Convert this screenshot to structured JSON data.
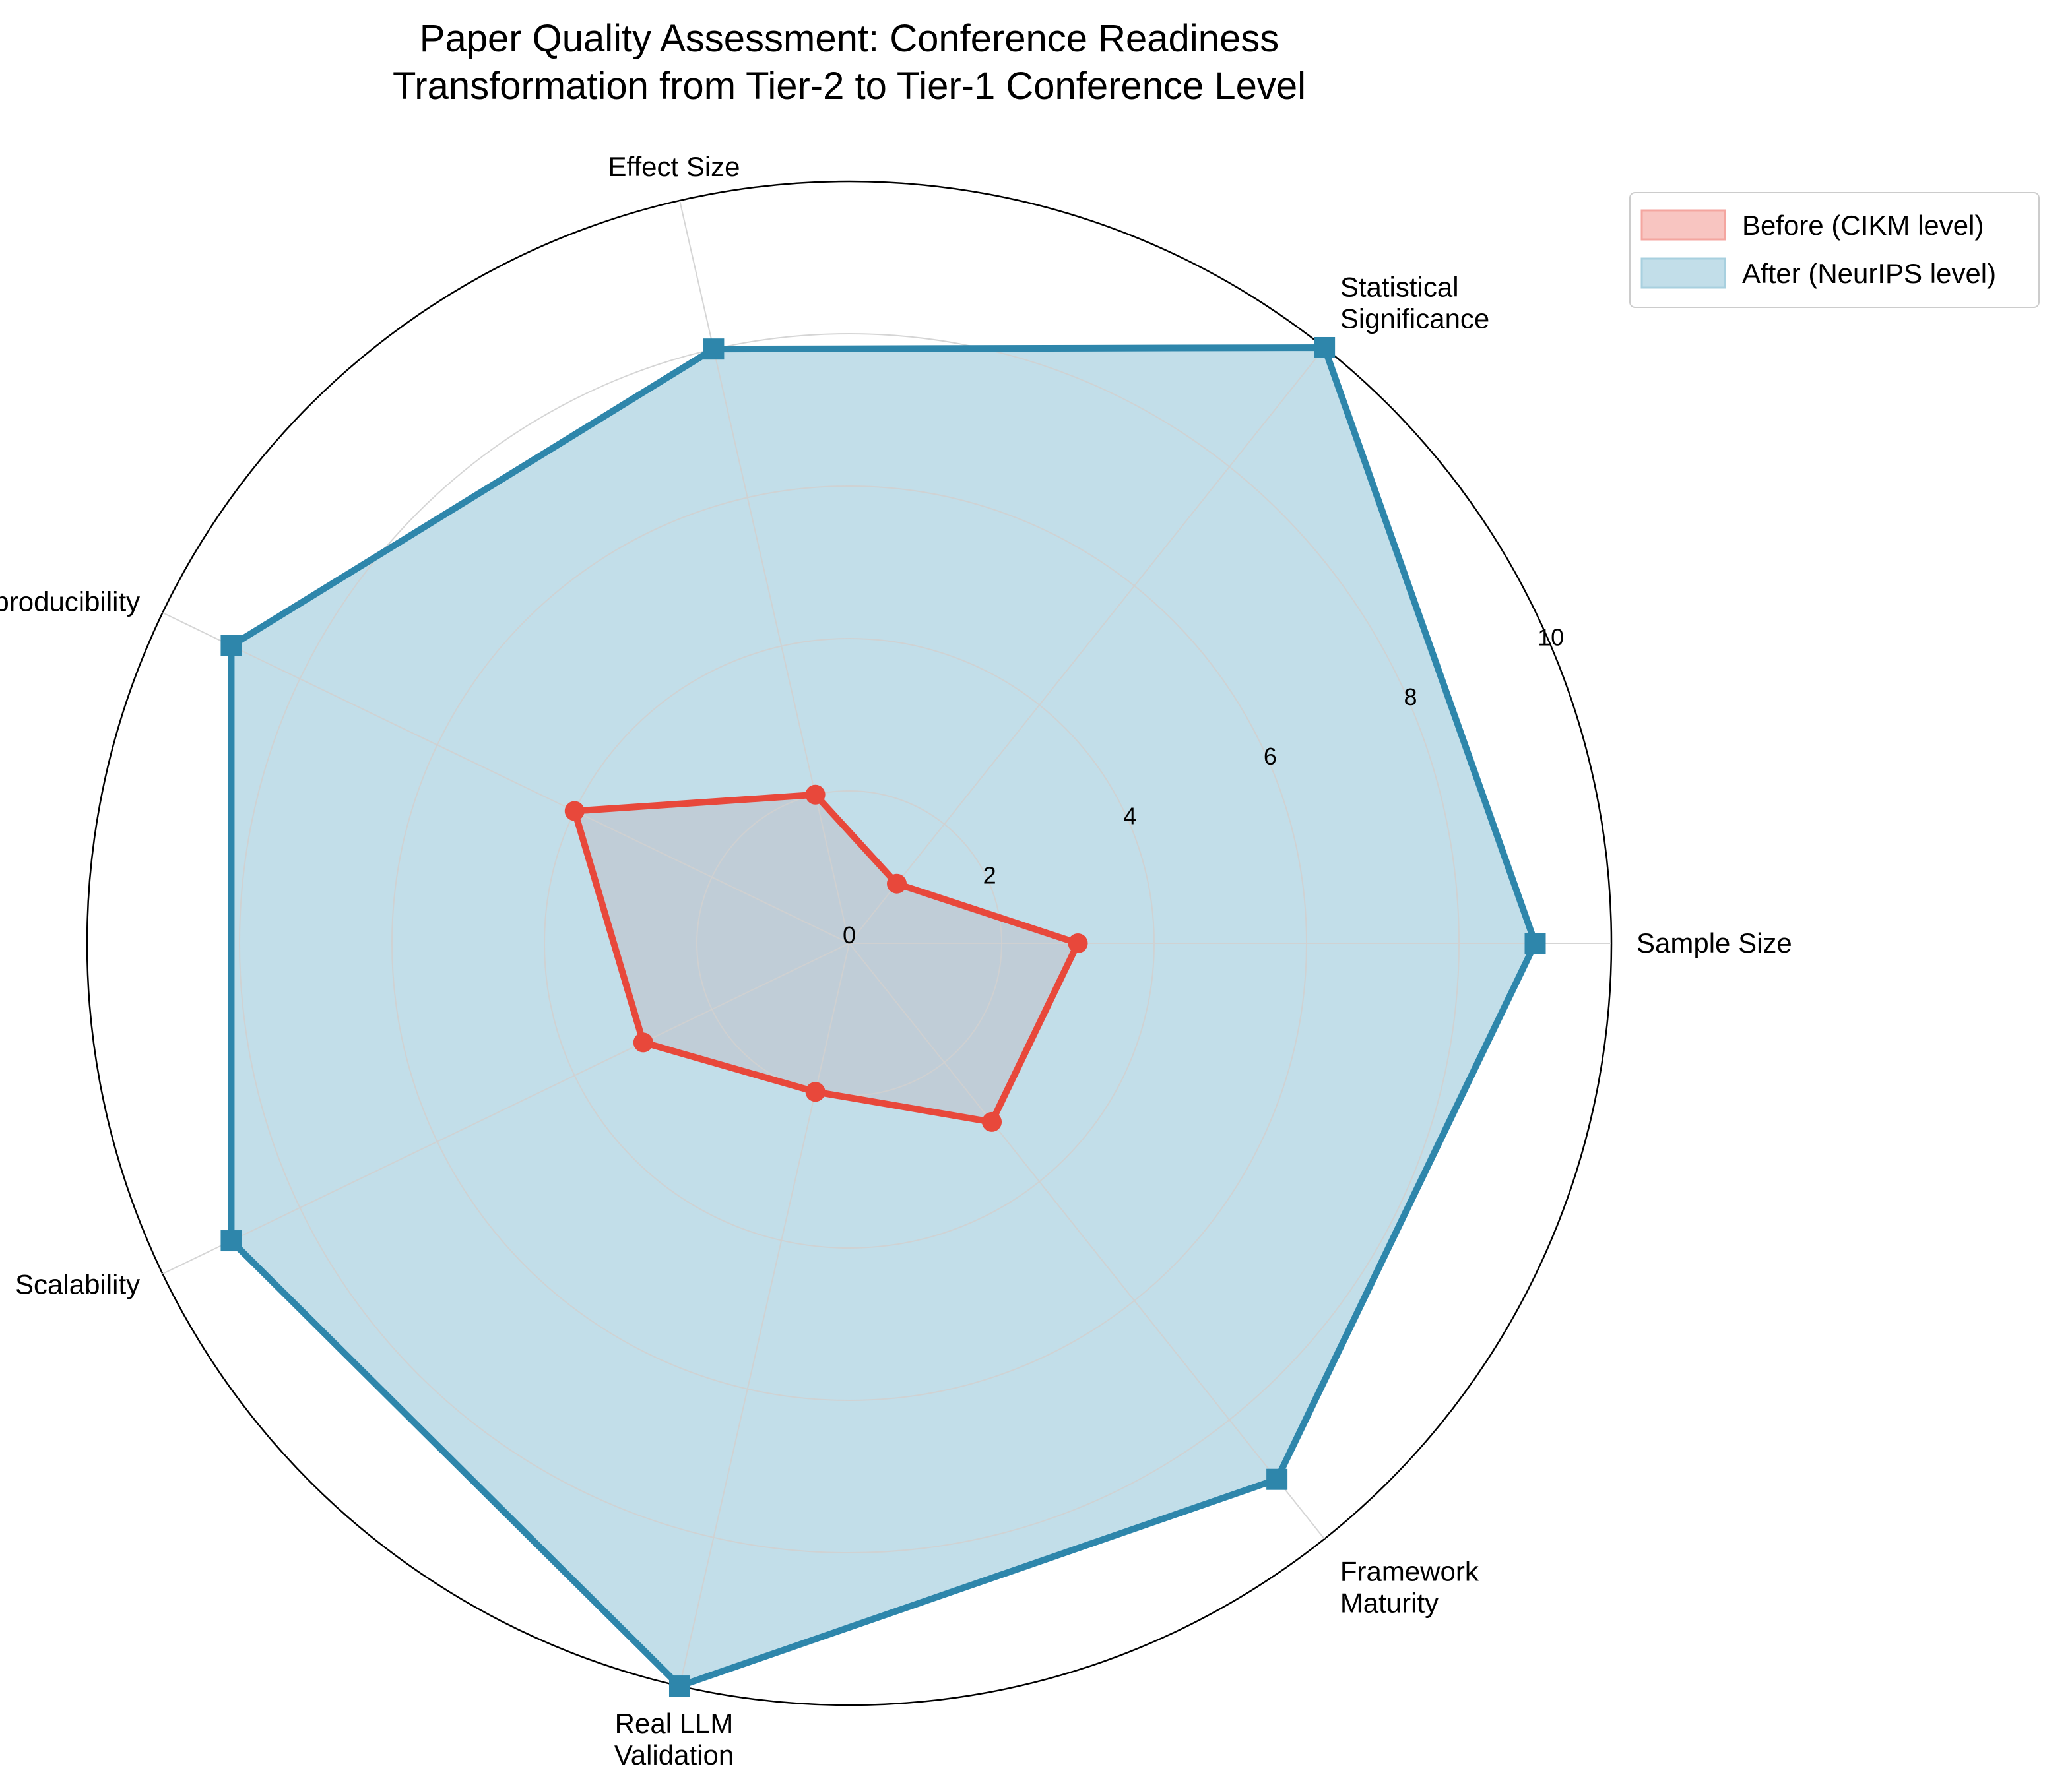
{
  "chart_data": {
    "type": "radar",
    "title_lines": [
      "Paper Quality Assessment: Conference Readiness",
      "Transformation from Tier-2 to Tier-1 Conference Level"
    ],
    "categories": [
      [
        "Sample Size"
      ],
      [
        "Statistical",
        "Significance"
      ],
      [
        "Effect Size"
      ],
      [
        "Reproducibility"
      ],
      [
        "Scalability"
      ],
      [
        "Real LLM",
        "Validation"
      ],
      [
        "Framework",
        "Maturity"
      ]
    ],
    "r_ticks": [
      "0",
      "2",
      "4",
      "6",
      "8",
      "10"
    ],
    "r_tick_values": [
      0,
      2,
      4,
      6,
      8,
      10
    ],
    "rlim": [
      0,
      10
    ],
    "grid": true,
    "legend_position": "top-right",
    "series": [
      {
        "name": "Before (CIKM level)",
        "values": [
          3,
          1,
          2,
          4,
          3,
          2,
          3
        ],
        "line_color": "#e8483b",
        "fill_color": "#f4a6a0",
        "marker": "circle"
      },
      {
        "name": "After (NeurIPS level)",
        "values": [
          9,
          10,
          8,
          9,
          9,
          10,
          9
        ],
        "line_color": "#2e86ab",
        "fill_color": "#a8d0df",
        "marker": "square"
      }
    ]
  }
}
